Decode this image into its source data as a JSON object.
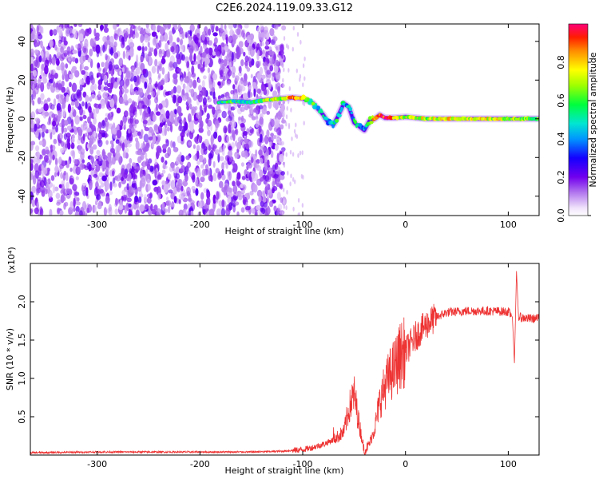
{
  "page": {
    "title": "C2E6.2024.119.09.33.G12"
  },
  "chart_data": [
    {
      "type": "heatmap",
      "title": "C2E6.2024.119.09.33.G12",
      "xlabel": "Height of straight line (km)",
      "ylabel": "Frequency (Hz)",
      "xlim": [
        -365,
        130
      ],
      "ylim": [
        -50,
        49
      ],
      "x_ticks": [
        -300,
        -200,
        -100,
        0,
        100
      ],
      "x_tick_labels": [
        "-300",
        "-200",
        "-100",
        "0",
        "100"
      ],
      "y_ticks": [
        -40,
        -20,
        0,
        20,
        40
      ],
      "y_tick_labels": [
        "-40",
        "-20",
        "0",
        "20",
        "40"
      ],
      "noise_region_x": [
        -365,
        -118
      ],
      "signal_ridge": {
        "x": [
          -182,
          -170,
          -160,
          -150,
          -140,
          -130,
          -120,
          -110,
          -100,
          -95,
          -90,
          -85,
          -80,
          -75,
          -70,
          -65,
          -60,
          -55,
          -50,
          -45,
          -40,
          -35,
          -30,
          -25,
          -20,
          -10,
          0,
          10,
          20,
          40,
          60,
          80,
          100,
          130
        ],
        "frequency": [
          8.5,
          9,
          9,
          8.5,
          9.5,
          10,
          10.5,
          11,
          10.5,
          9.5,
          8,
          5,
          2,
          -2,
          -3,
          2,
          8,
          6,
          -2,
          -4,
          -6,
          -1,
          0,
          2,
          0.5,
          0.5,
          1,
          0.5,
          0,
          0,
          0,
          0,
          0,
          0
        ],
        "amplitude": [
          0.5,
          0.55,
          0.5,
          0.55,
          0.6,
          0.65,
          0.7,
          0.85,
          0.8,
          0.6,
          0.55,
          0.5,
          0.45,
          0.45,
          0.5,
          0.5,
          0.45,
          0.4,
          0.5,
          0.45,
          0.4,
          0.7,
          0.8,
          0.85,
          0.95,
          0.8,
          0.7,
          0.75,
          0.7,
          0.75,
          0.7,
          0.75,
          0.7,
          0.6
        ]
      },
      "colorbar": {
        "label": "Normalized spectral amplitude",
        "range": [
          0,
          1
        ],
        "ticks": [
          0.0,
          0.2,
          0.4,
          0.6,
          0.8
        ],
        "tick_labels": [
          "0.0",
          "0.2",
          "0.4",
          "0.6",
          "0.8"
        ]
      }
    },
    {
      "type": "line",
      "xlabel": "Height of straight line (km)",
      "ylabel": "SNR (10 * v/v)",
      "y_multiplier": "(x10⁴)",
      "xlim": [
        -365,
        130
      ],
      "ylim": [
        0,
        2.5
      ],
      "x_ticks": [
        -300,
        -200,
        -100,
        0,
        100
      ],
      "x_tick_labels": [
        "-300",
        "-200",
        "-100",
        "0",
        "100"
      ],
      "y_ticks": [
        0.5,
        1.0,
        1.5,
        2.0
      ],
      "y_tick_labels": [
        "0.5",
        "1.0",
        "1.5",
        "2.0"
      ],
      "color": "#ee3333",
      "series": [
        {
          "x": [
            -365,
            -300,
            -200,
            -150,
            -120,
            -100,
            -90,
            -80,
            -70,
            -60,
            -55,
            -50,
            -45,
            -40,
            -35,
            -30,
            -25,
            -20,
            -15,
            -10,
            -5,
            0,
            10,
            20,
            30,
            40,
            60,
            80,
            100,
            104,
            106,
            108,
            110,
            120,
            130
          ],
          "values": [
            0.03,
            0.04,
            0.04,
            0.04,
            0.05,
            0.07,
            0.1,
            0.14,
            0.2,
            0.3,
            0.6,
            0.8,
            0.4,
            0.05,
            0.15,
            0.35,
            0.7,
            0.9,
            1.05,
            1.15,
            1.3,
            1.35,
            1.55,
            1.7,
            1.8,
            1.86,
            1.88,
            1.88,
            1.87,
            1.8,
            1.2,
            2.4,
            1.8,
            1.78,
            1.78
          ]
        }
      ]
    }
  ]
}
